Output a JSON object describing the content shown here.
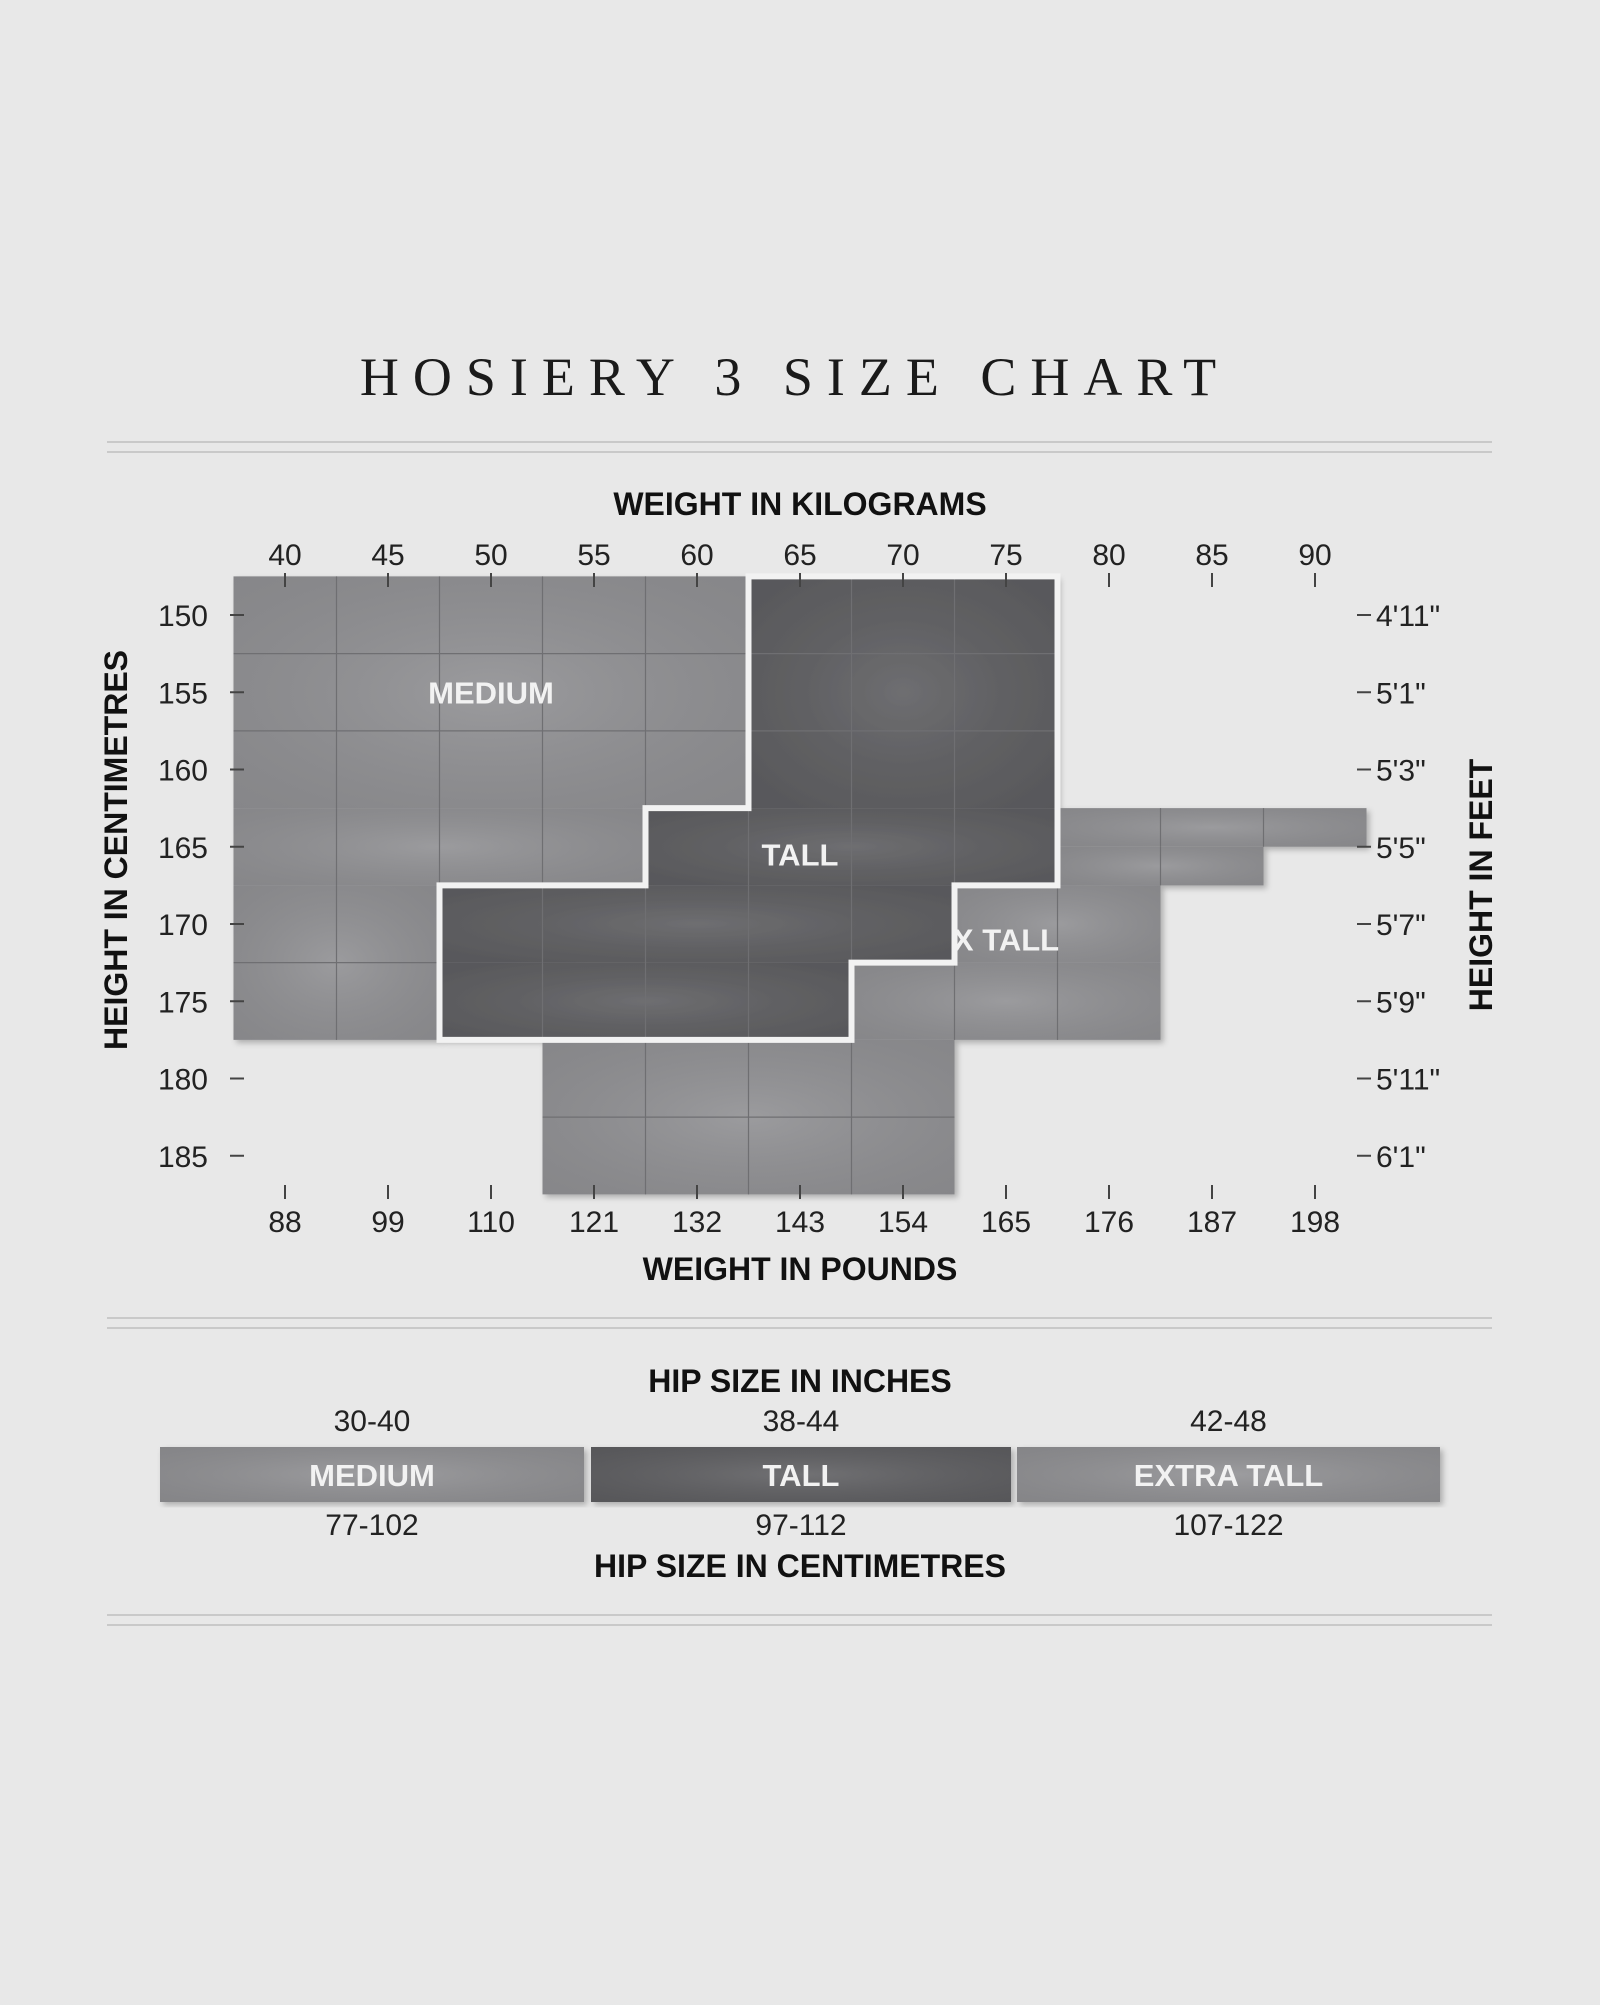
{
  "title": "HOSIERY 3 SIZE CHART",
  "chart_data": {
    "type": "heatmap",
    "x_top_label": "WEIGHT IN KILOGRAMS",
    "x_bottom_label": "WEIGHT IN POUNDS",
    "y_left_label": "HEIGHT IN CENTIMETRES",
    "y_right_label": "HEIGHT IN FEET",
    "x_kg_ticks": [
      40,
      45,
      50,
      55,
      60,
      65,
      70,
      75,
      80,
      85,
      90
    ],
    "x_lb_ticks": [
      "88",
      "99",
      "110",
      "121",
      "132",
      "143",
      "154",
      "165",
      "176",
      "187",
      "198"
    ],
    "y_cm_ticks": [
      150,
      155,
      160,
      165,
      170,
      175,
      180,
      185
    ],
    "y_ft_ticks": [
      "4'11\"",
      "5'1\"",
      "5'3\"",
      "5'5\"",
      "5'7\"",
      "5'9\"",
      "5'11\"",
      "6'1\""
    ],
    "x_range_kg": [
      37.5,
      92.5
    ],
    "y_range_cm": [
      147.5,
      187.5
    ],
    "regions": [
      {
        "label": "MEDIUM",
        "color": "#8f8f92",
        "cells": [
          [
            37.5,
            62.5,
            147.5,
            162.5
          ],
          [
            37.5,
            57.5,
            162.5,
            167.5
          ],
          [
            37.5,
            47.5,
            167.5,
            177.5
          ]
        ]
      },
      {
        "label": "TALL",
        "color": "#5d5d60",
        "cells": [
          [
            62.5,
            77.5,
            147.5,
            162.5
          ],
          [
            57.5,
            77.5,
            162.5,
            167.5
          ],
          [
            47.5,
            72.5,
            167.5,
            172.5
          ],
          [
            47.5,
            67.5,
            172.5,
            177.5
          ]
        ]
      },
      {
        "label": "X TALL",
        "color": "#8f8f92",
        "cells": [
          [
            77.5,
            92.5,
            162.5,
            165.0
          ],
          [
            77.5,
            87.5,
            165.0,
            167.5
          ],
          [
            72.5,
            82.5,
            167.5,
            172.5
          ],
          [
            67.5,
            82.5,
            172.5,
            177.5
          ],
          [
            52.5,
            72.5,
            177.5,
            187.5
          ]
        ]
      }
    ]
  },
  "hip": {
    "inches_label": "HIP SIZE IN INCHES",
    "cm_label": "HIP SIZE IN CENTIMETRES",
    "sizes": [
      {
        "name": "MEDIUM",
        "inches": "30-40",
        "cm": "77-102",
        "color": "#8f8f92"
      },
      {
        "name": "TALL",
        "inches": "38-44",
        "cm": "97-112",
        "color": "#5d5d60"
      },
      {
        "name": "EXTRA TALL",
        "inches": "42-48",
        "cm": "107-122",
        "color": "#8f8f92"
      }
    ]
  }
}
